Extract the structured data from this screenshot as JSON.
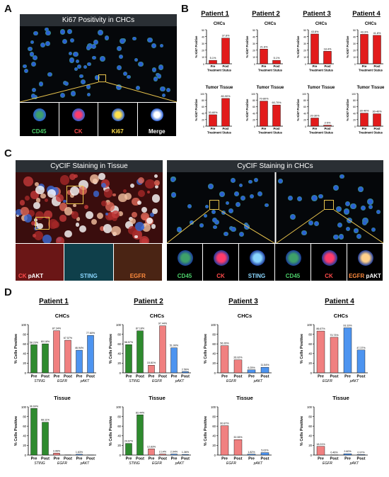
{
  "panel_letters": {
    "a": "A",
    "b": "B",
    "c": "C",
    "d": "D"
  },
  "panel_a": {
    "title": "Ki67 Positivity in CHCs",
    "channels": [
      {
        "label": "CD45",
        "color": "#4cd06a"
      },
      {
        "label": "CK",
        "color": "#ff4b4b"
      },
      {
        "label": "Ki67",
        "color": "#ffe04a"
      },
      {
        "label": "Merge",
        "color": "#ffffff"
      }
    ]
  },
  "panel_c": {
    "tissue_title": "CyCIF Staining in Tissue",
    "chc_title": "CyCIF Staining in CHCs",
    "tissue_labels": [
      {
        "parts": [
          {
            "text": "CK",
            "color": "#ff4b4b"
          },
          {
            "text": " pAKT",
            "color": "#ffffff"
          }
        ]
      },
      {
        "parts": [
          {
            "text": "STING",
            "color": "#8ad6ff"
          }
        ]
      },
      {
        "parts": [
          {
            "text": "EGFR",
            "color": "#ff8b3d"
          }
        ]
      }
    ],
    "chc_labels": [
      {
        "parts": [
          {
            "text": "CD45",
            "color": "#4cd06a"
          }
        ]
      },
      {
        "parts": [
          {
            "text": "CK",
            "color": "#ff4b4b"
          }
        ]
      },
      {
        "parts": [
          {
            "text": "STING",
            "color": "#8ad6ff"
          }
        ]
      },
      {
        "parts": [
          {
            "text": "CD45",
            "color": "#4cd06a"
          }
        ]
      },
      {
        "parts": [
          {
            "text": "CK",
            "color": "#ff4b4b"
          }
        ]
      },
      {
        "parts": [
          {
            "text": "EGFR",
            "color": "#ff8b3d"
          },
          {
            "text": " pAKT",
            "color": "#ffffff"
          }
        ]
      }
    ]
  },
  "chart_data": [
    {
      "panel": "B",
      "patient": "Patient 1",
      "title": "CHCs",
      "type": "bar",
      "ylabel": "% Ki67 Positive",
      "xlabel": "Treatment Status",
      "categories": [
        "Pre",
        "Post"
      ],
      "values": [
        5.1,
        37.8
      ],
      "labels": [
        "5.1%",
        "37.8%"
      ],
      "ylim": [
        0,
        50
      ]
    },
    {
      "panel": "B",
      "patient": "Patient 2",
      "title": "CHCs",
      "type": "bar",
      "ylabel": "% Ki67 Positive",
      "xlabel": "Treatment Status",
      "categories": [
        "Pre",
        "Post"
      ],
      "values": [
        21.6,
        5.1
      ],
      "labels": [
        "21.6%",
        "5.1%"
      ],
      "ylim": [
        0,
        50
      ]
    },
    {
      "panel": "B",
      "patient": "Patient 3",
      "title": "CHCs",
      "type": "bar",
      "ylabel": "% Ki67 Positive",
      "xlabel": "Treatment Status",
      "categories": [
        "Pre",
        "Post"
      ],
      "values": [
        43.8,
        18.4
      ],
      "labels": [
        "43.8%",
        "18.4%"
      ],
      "ylim": [
        0,
        50
      ]
    },
    {
      "panel": "B",
      "patient": "Patient 4",
      "title": "CHCs",
      "type": "bar",
      "ylabel": "% Ki67 Positive",
      "xlabel": "Treatment Status",
      "categories": [
        "Pre",
        "Post"
      ],
      "values": [
        43.3,
        41.8
      ],
      "labels": [
        "43.3%",
        "41.8%"
      ],
      "ylim": [
        0,
        50
      ]
    },
    {
      "panel": "B",
      "patient": "Patient 1",
      "title": "Tumor Tissue",
      "type": "bar",
      "ylabel": "% Ki67 Positive",
      "xlabel": "Treatment Status",
      "categories": [
        "Pre",
        "Post"
      ],
      "values": [
        35,
        85
      ],
      "labels": [
        "30-60%",
        "80-90%"
      ],
      "ylim": [
        0,
        100
      ]
    },
    {
      "panel": "B",
      "patient": "Patient 2",
      "title": "Tumor Tissue",
      "type": "bar",
      "ylabel": "% Ki67 Positive",
      "xlabel": "Treatment Status",
      "categories": [
        "Pre",
        "Post"
      ],
      "values": [
        77,
        65
      ],
      "labels": [
        "70-80%",
        "60-70%"
      ],
      "ylim": [
        0,
        100
      ]
    },
    {
      "panel": "B",
      "patient": "Patient 3",
      "title": "Tumor Tissue",
      "type": "bar",
      "ylabel": "% Ki67 Positive",
      "xlabel": "Treatment Status",
      "categories": [
        "Pre",
        "Post"
      ],
      "values": [
        25,
        3
      ],
      "labels": [
        "20-30%",
        "2-5%"
      ],
      "ylim": [
        0,
        100
      ]
    },
    {
      "panel": "B",
      "patient": "Patient 4",
      "title": "Tumor Tissue",
      "type": "bar",
      "ylabel": "% Ki67 Positive",
      "xlabel": "Treatment Status",
      "categories": [
        "Pre",
        "Post"
      ],
      "values": [
        40,
        38
      ],
      "labels": [
        "30-40%",
        "30-40%"
      ],
      "ylim": [
        0,
        100
      ]
    },
    {
      "panel": "D",
      "patient": "Patient 1",
      "title": "CHCs",
      "type": "bar",
      "ylabel": "% Cells Positive",
      "ylim": [
        0,
        100
      ],
      "groups": [
        {
          "marker": "STING",
          "color": "#2e8b2e"
        },
        {
          "marker": "EGFR",
          "color": "#f08080"
        },
        {
          "marker": "pAKT",
          "color": "#4d94f0"
        }
      ],
      "categories": [
        "Pre",
        "Post",
        "Pre",
        "Post",
        "Pre",
        "Post"
      ],
      "values": [
        58.23,
        60.16,
        87.34,
        67.57,
        46.94,
        77.6
      ],
      "labels": [
        "58.23%",
        "60.16%",
        "87.34%",
        "67.57%",
        "46.94%",
        "77.60%"
      ]
    },
    {
      "panel": "D",
      "patient": "Patient 2",
      "title": "CHCs",
      "type": "bar",
      "ylabel": "% Cells Positive",
      "ylim": [
        0,
        100
      ],
      "groups": [
        {
          "marker": "STING",
          "color": "#2e8b2e"
        },
        {
          "marker": "EGFR",
          "color": "#f08080"
        },
        {
          "marker": "pAKT",
          "color": "#4d94f0"
        }
      ],
      "categories": [
        "Pre",
        "Post",
        "Pre",
        "Post",
        "Pre",
        "Post"
      ],
      "values": [
        58.57,
        87.18,
        15.81,
        97.44,
        51.9,
        2.56
      ],
      "labels": [
        "58.57%",
        "87.18%",
        "15.81%",
        "97.44%",
        "51.90%",
        "2.56%"
      ]
    },
    {
      "panel": "D",
      "patient": "Patient 3",
      "title": "CHCs",
      "type": "bar",
      "ylabel": "% Cells Positive",
      "ylim": [
        0,
        100
      ],
      "groups": [
        {
          "marker": "EGFR",
          "color": "#f08080"
        },
        {
          "marker": "pAKT",
          "color": "#4d94f0"
        }
      ],
      "categories": [
        "Pre",
        "Post",
        "Pre",
        "Post"
      ],
      "values": [
        56.26,
        26.92,
        6.25,
        11.54
      ],
      "labels": [
        "56.26%",
        "26.92%",
        "6.25%",
        "11.54%"
      ]
    },
    {
      "panel": "D",
      "patient": "Patient 4",
      "title": "CHCs",
      "type": "bar",
      "ylabel": "% Cells Positive",
      "ylim": [
        0,
        100
      ],
      "groups": [
        {
          "marker": "EGFR",
          "color": "#f08080"
        },
        {
          "marker": "pAKT",
          "color": "#4d94f0"
        }
      ],
      "categories": [
        "Pre",
        "Post",
        "Pre",
        "Post"
      ],
      "values": [
        86.67,
        73.73,
        93.33,
        47.37
      ],
      "labels": [
        "86.67%",
        "73.73%",
        "93.33%",
        "47.37%"
      ]
    },
    {
      "panel": "D",
      "patient": "Patient 1",
      "title": "Tissue",
      "type": "bar",
      "ylabel": "% Cells Positive",
      "ylim": [
        0,
        100
      ],
      "groups": [
        {
          "marker": "STING",
          "color": "#2e8b2e"
        },
        {
          "marker": "EGFR",
          "color": "#f08080"
        },
        {
          "marker": "pAKT",
          "color": "#4d94f0"
        }
      ],
      "categories": [
        "Pre",
        "Post",
        "Pre",
        "Post",
        "Pre",
        "Post"
      ],
      "values": [
        96.69,
        68.11,
        3.96,
        0.3,
        1.63,
        0.2
      ],
      "labels": [
        "96.69%",
        "68.11%",
        "3.96%",
        "",
        "1.63%",
        ""
      ]
    },
    {
      "panel": "D",
      "patient": "Patient 2",
      "title": "Tissue",
      "type": "bar",
      "ylabel": "% Cells Positive",
      "ylim": [
        0,
        100
      ],
      "groups": [
        {
          "marker": "STING",
          "color": "#2e8b2e"
        },
        {
          "marker": "EGFR",
          "color": "#f08080"
        },
        {
          "marker": "pAKT",
          "color": "#4d94f0"
        }
      ],
      "categories": [
        "Pre",
        "Post",
        "Pre",
        "Post",
        "Pre",
        "Post"
      ],
      "values": [
        24.07,
        83.44,
        12.83,
        2.14,
        2.04,
        1.36
      ],
      "labels": [
        "24.07%",
        "83.44%",
        "12.83%",
        "2.14%",
        "2.04%",
        "1.36%"
      ]
    },
    {
      "panel": "D",
      "patient": "Patient 3",
      "title": "Tissue",
      "type": "bar",
      "ylabel": "% Cells Positive",
      "ylim": [
        0,
        100
      ],
      "groups": [
        {
          "marker": "EGFR",
          "color": "#f08080"
        },
        {
          "marker": "pAKT",
          "color": "#4d94f0"
        }
      ],
      "categories": [
        "Pre",
        "Post",
        "Pre",
        "Post"
      ],
      "values": [
        60.87,
        32.06,
        1.82,
        5.02
      ],
      "labels": [
        "60.87%",
        "32.06%",
        "1.82%",
        "5.02%"
      ]
    },
    {
      "panel": "D",
      "patient": "Patient 4",
      "title": "Tissue",
      "type": "bar",
      "ylabel": "% Cells Positive",
      "ylim": [
        0,
        100
      ],
      "groups": [
        {
          "marker": "EGFR",
          "color": "#f08080"
        },
        {
          "marker": "pAKT",
          "color": "#4d94f0"
        }
      ],
      "categories": [
        "Pre",
        "Post",
        "Pre",
        "Post"
      ],
      "values": [
        18.01,
        0.46,
        2.6,
        0.97
      ],
      "labels": [
        "18.01%",
        "0.46%",
        "2.60%",
        "0.97%"
      ]
    }
  ]
}
